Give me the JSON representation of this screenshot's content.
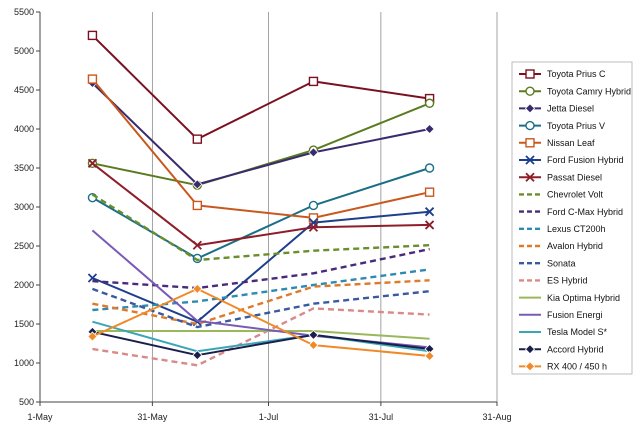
{
  "chart_data": {
    "type": "line",
    "title": "",
    "xlabel": "",
    "ylabel": "",
    "ylim": [
      500,
      5500
    ],
    "yticks": [
      500,
      1000,
      1500,
      2000,
      2500,
      3000,
      3500,
      4000,
      4500,
      5000,
      5500
    ],
    "x_axis": {
      "type": "date",
      "range": [
        "2012-05-01",
        "2012-08-31"
      ],
      "ticks": [
        {
          "date": "2012-05-01",
          "label": "1-May"
        },
        {
          "date": "2012-05-31",
          "label": "31-May"
        },
        {
          "date": "2012-07-01",
          "label": "1-Jul"
        },
        {
          "date": "2012-07-31",
          "label": "31-Jul"
        },
        {
          "date": "2012-08-31",
          "label": "31-Aug"
        }
      ]
    },
    "x": [
      "2012-05-15",
      "2012-06-12",
      "2012-07-13",
      "2012-08-13"
    ],
    "grid": "vertical",
    "legend_position": "right",
    "series": [
      {
        "name": "Toyota Prius C",
        "color": "#7a1020",
        "dash": "solid",
        "marker": "square",
        "values": [
          5200,
          3870,
          4610,
          4390
        ]
      },
      {
        "name": "Toyota Camry Hybrid",
        "color": "#5a7b1f",
        "dash": "solid",
        "marker": "circle",
        "values": [
          3560,
          3280,
          3730,
          4330
        ]
      },
      {
        "name": "Jetta Diesel",
        "color": "#3a2a6e",
        "dash": "solid",
        "marker": "diamond",
        "values": [
          4590,
          3290,
          3700,
          4000
        ]
      },
      {
        "name": "Toyota Prius V",
        "color": "#1a6f86",
        "dash": "solid",
        "marker": "circle",
        "values": [
          3120,
          2340,
          3020,
          3500
        ]
      },
      {
        "name": "Nissan Leaf",
        "color": "#c8581e",
        "dash": "solid",
        "marker": "square",
        "values": [
          4640,
          3020,
          2860,
          3190
        ]
      },
      {
        "name": "Ford Fusion Hybrid",
        "color": "#1d3f8c",
        "dash": "solid",
        "marker": "x",
        "values": [
          2090,
          1530,
          2800,
          2940
        ]
      },
      {
        "name": "Passat Diesel",
        "color": "#8e1d2a",
        "dash": "solid",
        "marker": "x",
        "values": [
          3560,
          2510,
          2740,
          2770
        ]
      },
      {
        "name": "Chevrolet Volt",
        "color": "#6a8e2a",
        "dash": "dash",
        "marker": "none",
        "values": [
          3160,
          2320,
          2440,
          2510
        ]
      },
      {
        "name": "Ford C-Max Hybrid",
        "color": "#4a2a7a",
        "dash": "dash",
        "marker": "none",
        "values": [
          2050,
          1960,
          2150,
          2460
        ]
      },
      {
        "name": "Lexus CT200h",
        "color": "#2f8ab0",
        "dash": "dash",
        "marker": "none",
        "values": [
          1680,
          1790,
          2000,
          2200
        ]
      },
      {
        "name": "Avalon Hybrid",
        "color": "#e07a2a",
        "dash": "dash",
        "marker": "none",
        "values": [
          1760,
          1500,
          1980,
          2060
        ]
      },
      {
        "name": "Sonata",
        "color": "#3a5aa0",
        "dash": "dash",
        "marker": "none",
        "values": [
          1950,
          1460,
          1760,
          1920
        ]
      },
      {
        "name": "ES Hybrid",
        "color": "#d98a88",
        "dash": "dash",
        "marker": "none",
        "values": [
          1180,
          970,
          1700,
          1620
        ]
      },
      {
        "name": "Kia Optima Hybrid",
        "color": "#9ab85a",
        "dash": "solid",
        "marker": "none",
        "values": [
          1410,
          1410,
          1410,
          1310
        ]
      },
      {
        "name": "Fusion Energi",
        "color": "#7a5ab8",
        "dash": "solid",
        "marker": "none",
        "values": [
          2700,
          1540,
          1350,
          1200
        ]
      },
      {
        "name": "Tesla Model S*",
        "color": "#3aa6b8",
        "dash": "solid",
        "marker": "none",
        "values": [
          1530,
          1150,
          1360,
          1150
        ]
      },
      {
        "name": "Accord Hybrid",
        "color": "#1a1f4a",
        "dash": "solid",
        "marker": "diamond",
        "values": [
          1400,
          1100,
          1360,
          1180
        ]
      },
      {
        "name": "RX 400 / 450 h",
        "color": "#f08a28",
        "dash": "solid",
        "marker": "diamond",
        "values": [
          1340,
          1950,
          1230,
          1090
        ]
      }
    ]
  }
}
